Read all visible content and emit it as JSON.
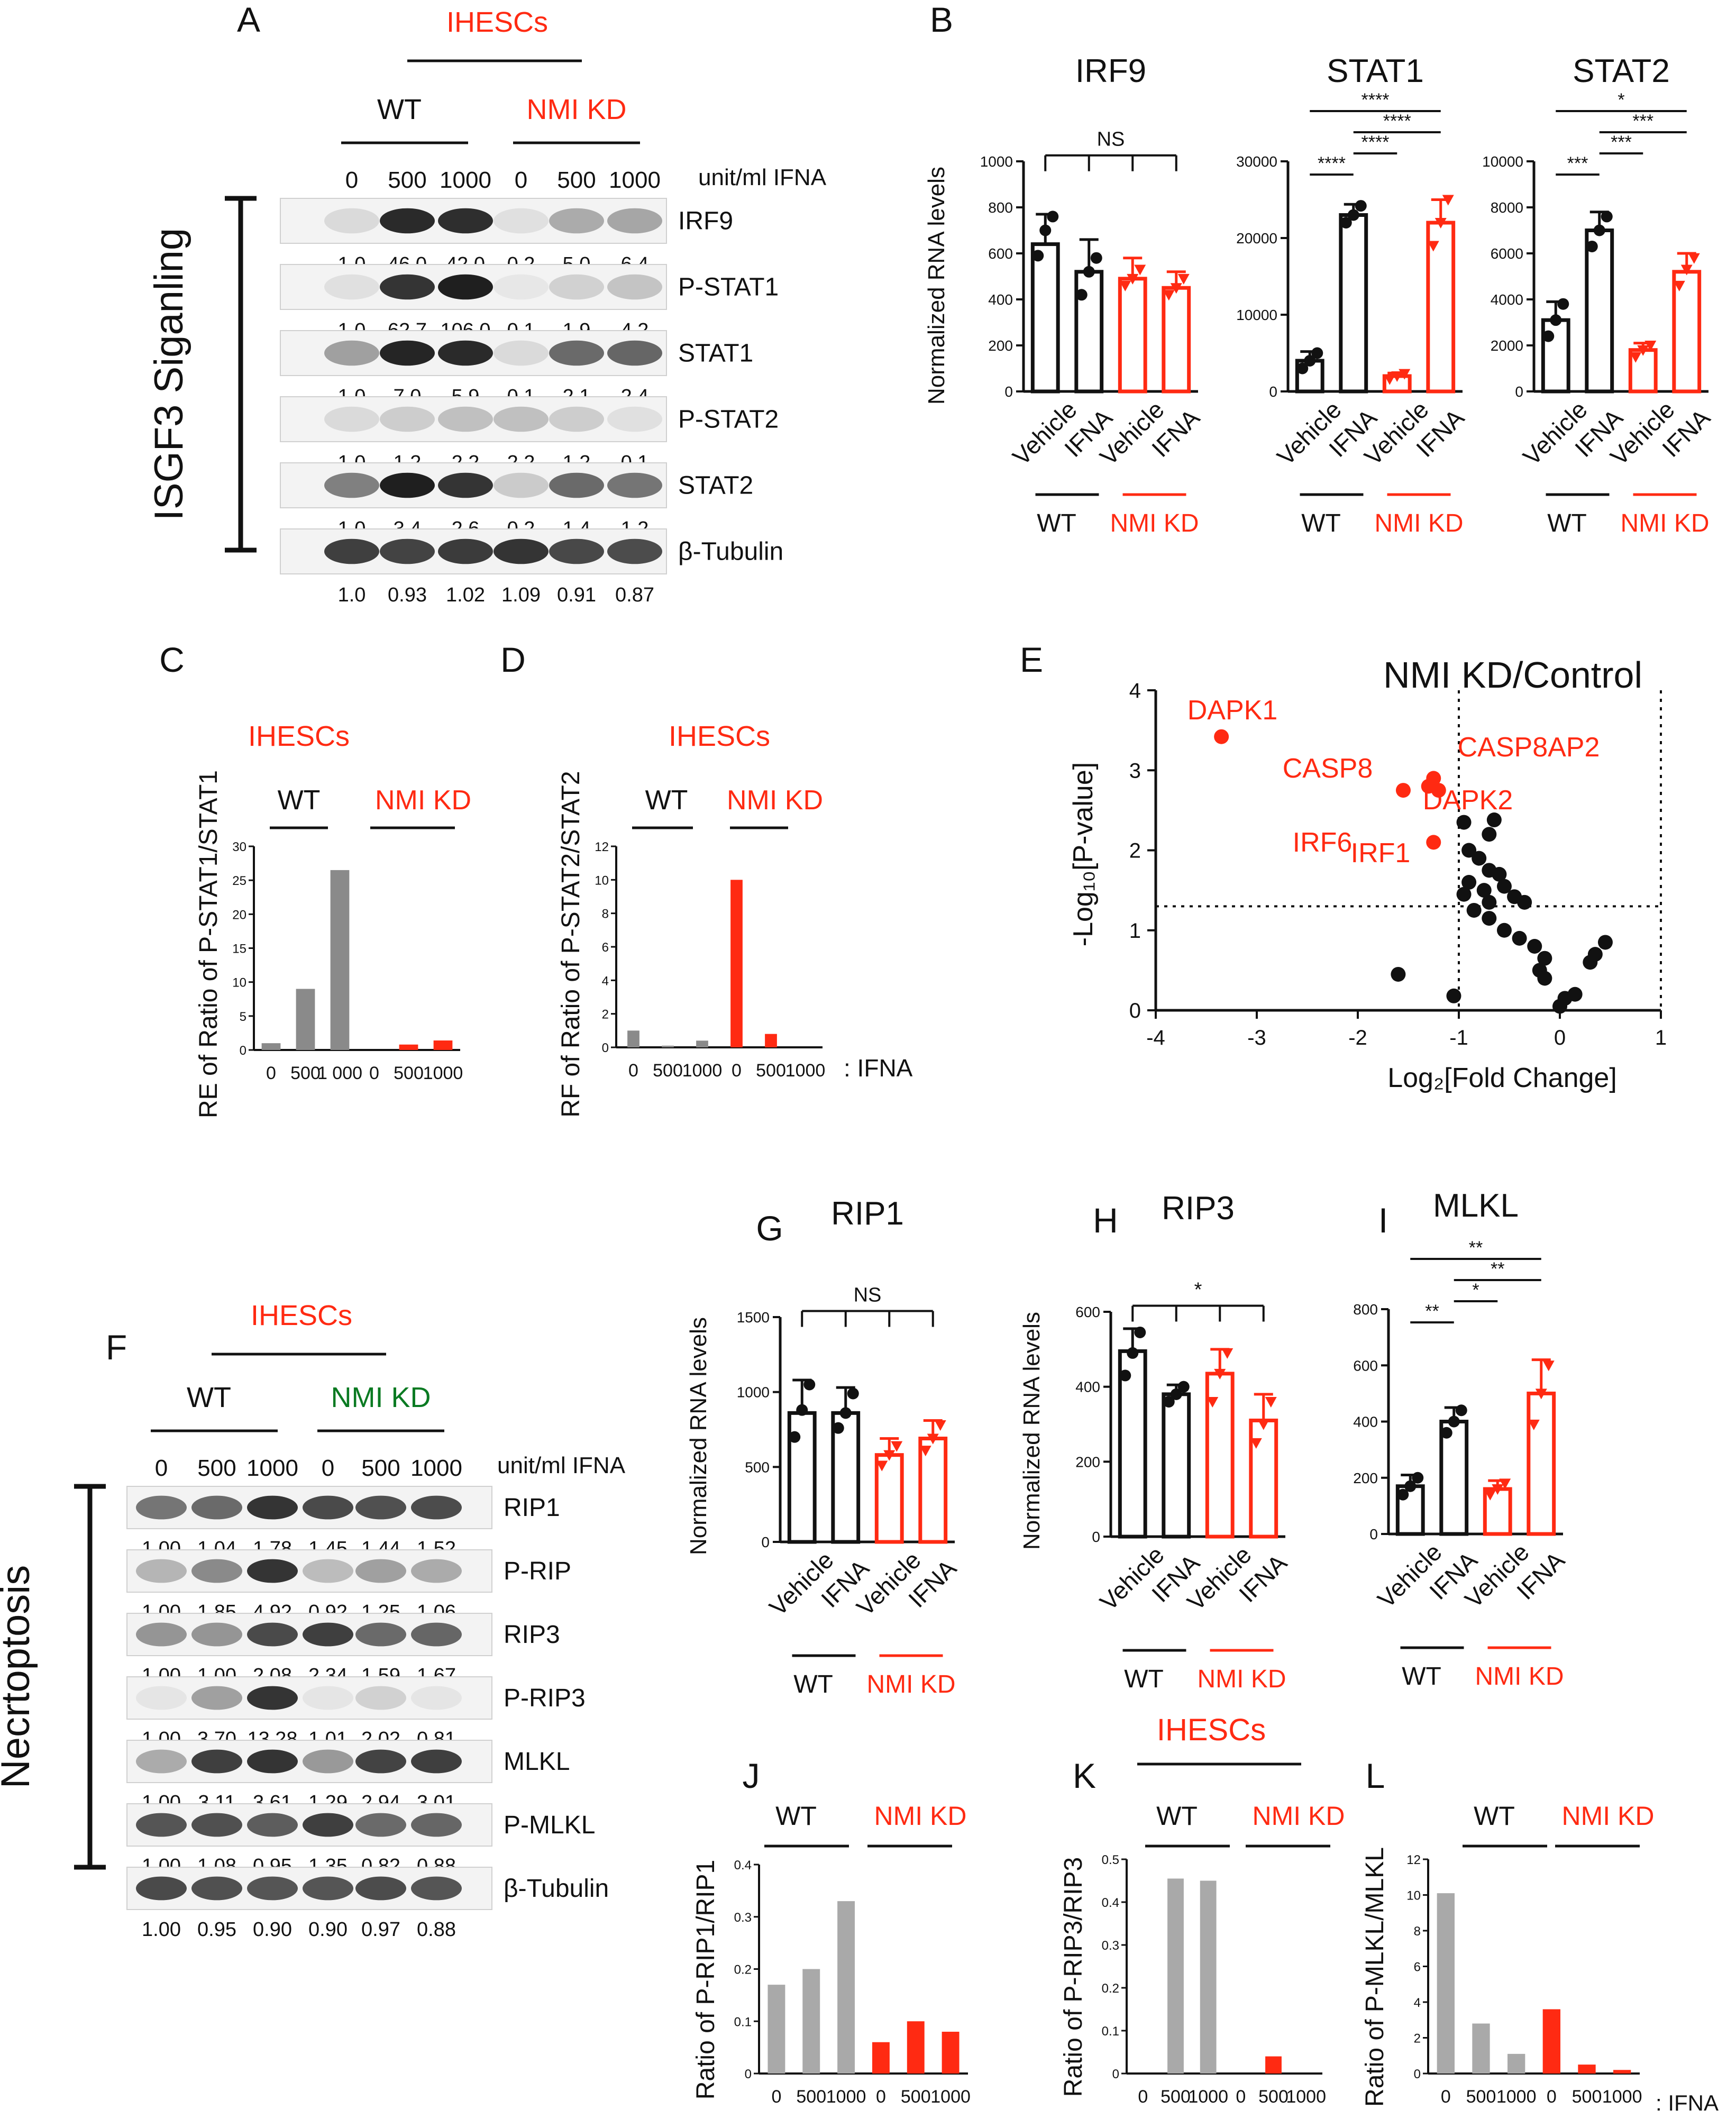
{
  "colors": {
    "wt": "#111111",
    "kd": "#ff2a12",
    "grey": "#8a8a8a",
    "lightgrey": "#a9a9a9",
    "green": "#0a7a22"
  },
  "panel_letters": [
    "A",
    "B",
    "C",
    "D",
    "E",
    "F",
    "G",
    "H",
    "I",
    "J",
    "K",
    "L"
  ],
  "panelA": {
    "cell": "IHESCs",
    "wt": "WT",
    "kd": "NMI KD",
    "unit": "unit/ml IFNA",
    "doses": [
      "0",
      "500",
      "1000",
      "0",
      "500",
      "1000"
    ],
    "side_label": "ISGF3 Siganling",
    "rows": [
      {
        "name": "IRF9",
        "vals": [
          "1.0",
          "46.0",
          "42.0",
          "0.2",
          "5.0",
          "6.4"
        ],
        "bands": [
          0.08,
          0.9,
          0.88,
          0.05,
          0.3,
          0.32
        ]
      },
      {
        "name": "P-STAT1",
        "vals": [
          "1.0",
          "62.7",
          "106.0",
          "0.1",
          "1.9",
          "4.2"
        ],
        "bands": [
          0.05,
          0.85,
          0.95,
          0.02,
          0.12,
          0.18
        ]
      },
      {
        "name": "STAT1",
        "vals": [
          "1.0",
          "7.0",
          "5.9",
          "0.1",
          "2.1",
          "2.4"
        ],
        "bands": [
          0.35,
          0.92,
          0.9,
          0.08,
          0.6,
          0.62
        ]
      },
      {
        "name": "P-STAT2",
        "vals": [
          "1.0",
          "1.2",
          "2.2",
          "2.2",
          "1.2",
          "0.1"
        ],
        "bands": [
          0.08,
          0.14,
          0.2,
          0.2,
          0.14,
          0.05
        ]
      },
      {
        "name": "STAT2",
        "vals": [
          "1.0",
          "3.4",
          "2.6",
          "0.2",
          "1.4",
          "1.2"
        ],
        "bands": [
          0.5,
          0.95,
          0.85,
          0.15,
          0.6,
          0.55
        ]
      },
      {
        "name": "β-Tubulin",
        "vals": [
          "1.0",
          "0.93",
          "1.02",
          "1.09",
          "0.91",
          "0.87"
        ],
        "bands": [
          0.8,
          0.78,
          0.82,
          0.85,
          0.76,
          0.74
        ]
      }
    ]
  },
  "panelB": {
    "ylabel": "Normalized RNA levels",
    "cats": [
      "Vehicle",
      "IFNA",
      "Vehicle",
      "IFNA"
    ],
    "wt": "WT",
    "kd": "NMI KD",
    "charts": [
      {
        "title": "IRF9",
        "ymax": 1000,
        "ticks": [
          "0",
          "200",
          "400",
          "600",
          "800",
          "1000"
        ],
        "values": [
          640,
          520,
          490,
          450
        ],
        "errors": [
          130,
          140,
          90,
          70
        ],
        "points": [
          [
            590,
            700,
            760
          ],
          [
            420,
            520,
            580
          ],
          [
            460,
            490,
            530
          ],
          [
            420,
            450,
            490
          ]
        ],
        "sig": "NS"
      },
      {
        "title": "STAT1",
        "ymax": 30000,
        "ticks": [
          "0",
          "10000",
          "20000",
          "30000"
        ],
        "values": [
          4000,
          23000,
          2000,
          22000
        ],
        "errors": [
          1200,
          1400,
          400,
          3000
        ],
        "points": [
          [
            3000,
            4000,
            5000
          ],
          [
            22000,
            23000,
            24200
          ],
          [
            1600,
            2000,
            2300
          ],
          [
            19000,
            22000,
            25000
          ]
        ],
        "sig": [
          "****",
          "****",
          "****",
          "****"
        ]
      },
      {
        "title": "STAT2",
        "ymax": 10000,
        "ticks": [
          "0",
          "2000",
          "4000",
          "6000",
          "8000",
          "10000"
        ],
        "values": [
          3100,
          7000,
          1800,
          5200
        ],
        "errors": [
          800,
          800,
          300,
          800
        ],
        "points": [
          [
            2400,
            3100,
            3800
          ],
          [
            6300,
            7000,
            7600
          ],
          [
            1500,
            1800,
            2000
          ],
          [
            4600,
            5300,
            5800
          ]
        ],
        "sig": [
          "*",
          "***",
          "***",
          "***"
        ]
      }
    ]
  },
  "panelC": {
    "cell": "IHESCs",
    "wt": "WT",
    "kd": "NMI KD",
    "ylabel": "RE of Ratio of P-STAT1/STAT1",
    "ticks": [
      "0",
      "5",
      "10",
      "15",
      "20",
      "25",
      "30"
    ],
    "chart_data": {
      "type": "bar",
      "categories": [
        "0",
        "500",
        "1 000",
        "0",
        "500",
        "1000"
      ],
      "values": [
        1,
        9,
        26.5,
        0,
        0.8,
        1.4
      ],
      "ylim": [
        0,
        30
      ]
    }
  },
  "panelD": {
    "cell": "IHESCs",
    "wt": "WT",
    "kd": "NMI KD",
    "ylabel": "RF of Ratio of P-STAT2/STAT2",
    "ticks": [
      "0",
      "2",
      "4",
      "6",
      "8",
      "10",
      "12"
    ],
    "suffix": ": IFNA",
    "chart_data": {
      "type": "bar",
      "categories": [
        "0",
        "500",
        "1000",
        "0",
        "500",
        "1000"
      ],
      "values": [
        1,
        0.1,
        0.4,
        10,
        0.8,
        0
      ],
      "ylim": [
        0,
        12
      ]
    }
  },
  "panelE": {
    "title": "NMI KD/Control",
    "ylabel": "-Log₁₀[P-value]",
    "xlabel": "Log₂[Fold Change]",
    "xticks": [
      "-4",
      "-3",
      "-2",
      "-1",
      "0",
      "1"
    ],
    "yticks": [
      "0",
      "1",
      "2",
      "3",
      "4"
    ],
    "labels": [
      "DAPK1",
      "CASP8",
      "CASP8AP2",
      "IRF6",
      "DAPK2",
      "IRF1"
    ],
    "chart_data": {
      "type": "scatter",
      "highlighted": [
        [
          -3.35,
          3.42
        ],
        [
          -1.55,
          2.75
        ],
        [
          -1.3,
          2.8
        ],
        [
          -1.25,
          2.9
        ],
        [
          -1.2,
          2.75
        ],
        [
          -1.25,
          2.1
        ]
      ],
      "points": [
        [
          -1.6,
          0.45
        ],
        [
          -0.95,
          2.35
        ],
        [
          -0.65,
          2.38
        ],
        [
          -0.7,
          2.2
        ],
        [
          -0.9,
          2.0
        ],
        [
          -0.8,
          1.9
        ],
        [
          -0.7,
          1.75
        ],
        [
          -0.6,
          1.7
        ],
        [
          -0.9,
          1.6
        ],
        [
          -0.75,
          1.5
        ],
        [
          -0.55,
          1.55
        ],
        [
          -0.45,
          1.42
        ],
        [
          -0.35,
          1.35
        ],
        [
          -0.95,
          1.45
        ],
        [
          -0.7,
          1.35
        ],
        [
          -0.85,
          1.25
        ],
        [
          -0.7,
          1.15
        ],
        [
          -0.55,
          1.0
        ],
        [
          -0.4,
          0.9
        ],
        [
          -0.25,
          0.8
        ],
        [
          -0.15,
          0.65
        ],
        [
          -0.2,
          0.5
        ],
        [
          -0.15,
          0.4
        ],
        [
          0.05,
          0.15
        ],
        [
          0.15,
          0.2
        ],
        [
          0,
          0.05
        ],
        [
          0.3,
          0.6
        ],
        [
          0.35,
          0.7
        ],
        [
          0.45,
          0.85
        ],
        [
          -1.05,
          0.18
        ]
      ],
      "thresholds": {
        "x": [
          -1,
          1
        ],
        "y": 1.3
      },
      "xlim": [
        -4,
        1
      ],
      "ylim": [
        0,
        4
      ]
    }
  },
  "panelF": {
    "cell": "IHESCs",
    "wt": "WT",
    "kd": "NMI KD",
    "unit": "unit/ml IFNA",
    "doses": [
      "0",
      "500",
      "1000",
      "0",
      "500",
      "1000"
    ],
    "side_label": "Necrtoptosis",
    "rows": [
      {
        "name": "RIP1",
        "vals": [
          "1.00",
          "1.04",
          "1.78",
          "1.45",
          "1.44",
          "1.52"
        ],
        "bands": [
          0.55,
          0.6,
          0.85,
          0.75,
          0.72,
          0.74
        ]
      },
      {
        "name": "P-RIP",
        "vals": [
          "1.00",
          "1.85",
          "4.92",
          "0.92",
          "1.25",
          "1.06"
        ],
        "bands": [
          0.25,
          0.45,
          0.85,
          0.22,
          0.35,
          0.3
        ]
      },
      {
        "name": "RIP3",
        "vals": [
          "1.00",
          "1.00",
          "2.08",
          "2.34",
          "1.59",
          "1.67"
        ],
        "bands": [
          0.4,
          0.4,
          0.75,
          0.8,
          0.6,
          0.62
        ]
      },
      {
        "name": "P-RIP3",
        "vals": [
          "1.00",
          "3.70",
          "13.28",
          "1.01",
          "2.02",
          "0.81"
        ],
        "bands": [
          0.03,
          0.35,
          0.85,
          0.03,
          0.12,
          0.03
        ]
      },
      {
        "name": "MLKL",
        "vals": [
          "1.00",
          "3.11",
          "3.61",
          "1.29",
          "2.94",
          "3.01"
        ],
        "bands": [
          0.3,
          0.8,
          0.85,
          0.38,
          0.78,
          0.8
        ]
      },
      {
        "name": "P-MLKL",
        "vals": [
          "1.00",
          "1.08",
          "0.95",
          "1.35",
          "0.82",
          "0.88"
        ],
        "bands": [
          0.7,
          0.72,
          0.66,
          0.8,
          0.6,
          0.62
        ]
      },
      {
        "name": "β-Tubulin",
        "vals": [
          "1.00",
          "0.95",
          "0.90",
          "0.90",
          "0.97",
          "0.88"
        ],
        "bands": [
          0.75,
          0.72,
          0.7,
          0.7,
          0.74,
          0.7
        ]
      }
    ]
  },
  "panelGHI": {
    "ylabel": "Normalized RNA levels",
    "cats": [
      "Vehicle",
      "IFNA",
      "Vehicle",
      "IFNA"
    ],
    "wt": "WT",
    "kd": "NMI KD",
    "charts": [
      {
        "title": "RIP1",
        "ymax": 1500,
        "ticks": [
          "0",
          "500",
          "1000",
          "1500"
        ],
        "values": [
          860,
          860,
          580,
          690
        ],
        "errors": [
          220,
          170,
          110,
          120
        ],
        "points": [
          [
            700,
            880,
            1050
          ],
          [
            760,
            860,
            990
          ],
          [
            510,
            580,
            640
          ],
          [
            610,
            690,
            780
          ]
        ],
        "sig": "NS"
      },
      {
        "title": "RIP3",
        "ymax": 600,
        "ticks": [
          "0",
          "200",
          "400",
          "600"
        ],
        "values": [
          495,
          380,
          435,
          310
        ],
        "errors": [
          60,
          25,
          65,
          70
        ],
        "points": [
          [
            430,
            490,
            545
          ],
          [
            360,
            380,
            400
          ],
          [
            360,
            435,
            490
          ],
          [
            250,
            300,
            360
          ]
        ],
        "sig": "*"
      },
      {
        "title": "MLKL",
        "ymax": 800,
        "ticks": [
          "0",
          "200",
          "400",
          "600",
          "800"
        ],
        "values": [
          170,
          400,
          160,
          500
        ],
        "errors": [
          40,
          50,
          30,
          120
        ],
        "points": [
          [
            140,
            170,
            200
          ],
          [
            360,
            400,
            440
          ],
          [
            140,
            160,
            180
          ],
          [
            390,
            500,
            600
          ]
        ],
        "sig": [
          "**",
          "**",
          "*",
          "**"
        ]
      }
    ]
  },
  "panelJKL": {
    "cell": "IHESCs",
    "wt": "WT",
    "kd": "NMI KD",
    "xticks": [
      "0",
      "500",
      "1000",
      "0",
      "500",
      "1000"
    ],
    "suffix": ": IFNA",
    "charts": [
      {
        "ylabel": "Ratio of P-RIP1/RIP1",
        "ticks": [
          "0",
          "0.1",
          "0.2",
          "0.3",
          "0.4"
        ],
        "chart_data": {
          "type": "bar",
          "categories": [
            "0",
            "500",
            "1000",
            "0",
            "500",
            "1000"
          ],
          "values": [
            0.17,
            0.2,
            0.33,
            0.06,
            0.1,
            0.08
          ],
          "ylim": [
            0,
            0.4
          ]
        }
      },
      {
        "ylabel": "Ratio of P-RIP3/RIP3",
        "ticks": [
          "0",
          "0.1",
          "0.2",
          "0.3",
          "0.4",
          "0.5"
        ],
        "chart_data": {
          "type": "bar",
          "categories": [
            "0",
            "500",
            "1000",
            "0",
            "500",
            "1000"
          ],
          "values": [
            0,
            0.455,
            0.45,
            0,
            0.04,
            0
          ],
          "ylim": [
            0,
            0.5
          ]
        }
      },
      {
        "ylabel": "Ratio of P-MLKL/MLKL",
        "ticks": [
          "0",
          "2",
          "4",
          "6",
          "8",
          "10",
          "12"
        ],
        "chart_data": {
          "type": "bar",
          "categories": [
            "0",
            "500",
            "1000",
            "0",
            "500",
            "1000"
          ],
          "values": [
            10.1,
            2.8,
            1.1,
            3.6,
            0.5,
            0.2
          ],
          "ylim": [
            0,
            12
          ]
        }
      }
    ]
  }
}
